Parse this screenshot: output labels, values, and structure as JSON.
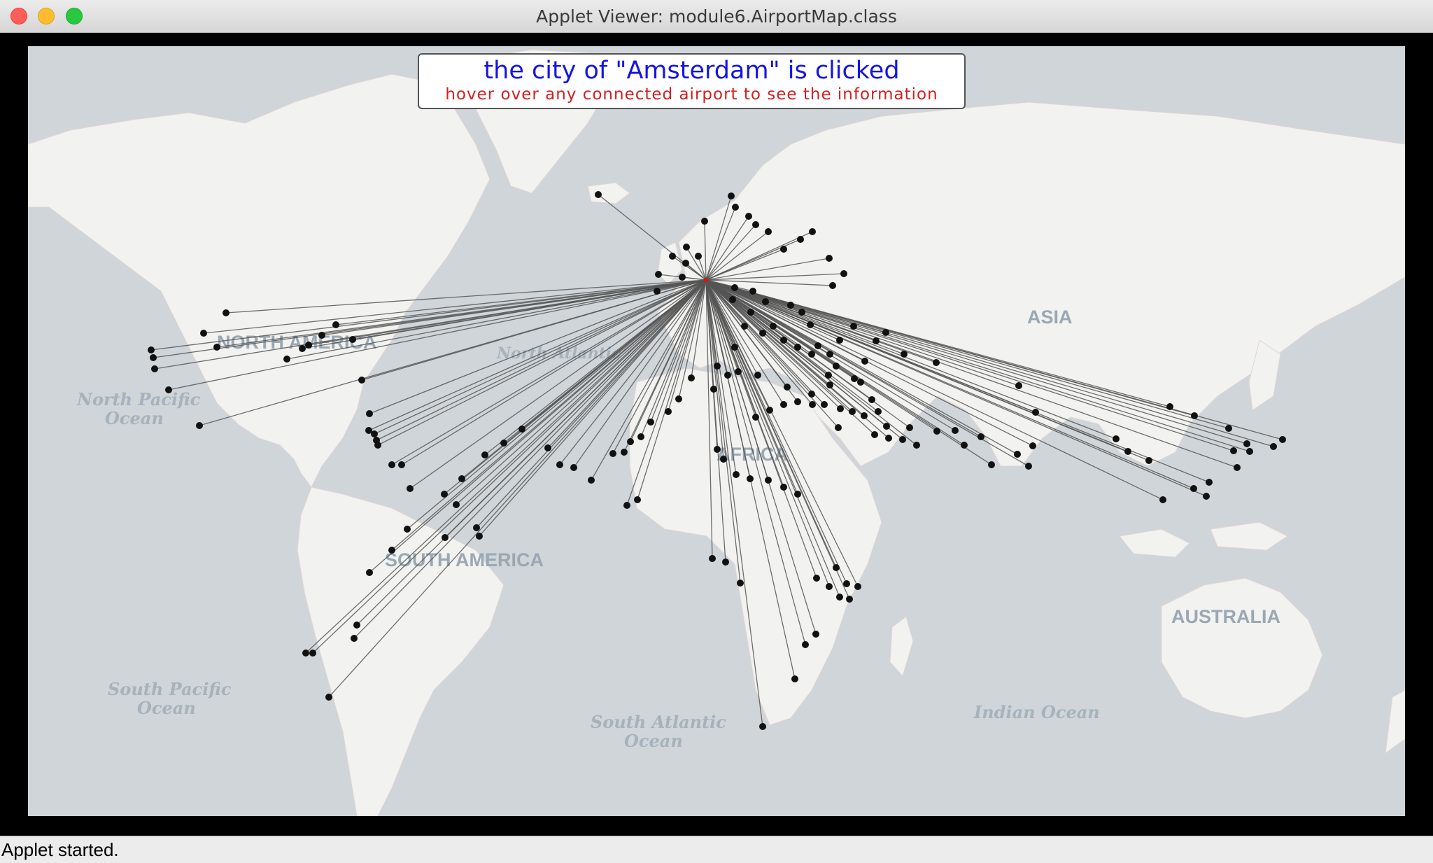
{
  "window": {
    "title": "Applet Viewer: module6.AirportMap.class"
  },
  "info_box": {
    "line1": "the city of \"Amsterdam\" is clicked",
    "line2": "hover over any connected airport to see the information"
  },
  "map": {
    "selected_city": "Amsterdam",
    "labels": {
      "north_america": "NORTH AMERICA",
      "south_america": "SOUTH AMERICA",
      "africa": "AFRICA",
      "asia": "ASIA",
      "australia": "AUSTRALIA",
      "north_atlantic": "North Atlantic",
      "north_pacific_1": "North Pacific",
      "north_pacific_2": "Ocean",
      "south_pacific_1": "South Pacific",
      "south_pacific_2": "Ocean",
      "south_atlantic_1": "South Atlantic",
      "south_atlantic_2": "Ocean",
      "indian_ocean": "Indian Ocean"
    },
    "colors": {
      "ocean": "#cfd5d9",
      "land": "#f2f2f0",
      "route_line": "#555555",
      "airport_marker": "#111111",
      "selected_marker": "#e01010"
    },
    "marker_icon": "airport-dot"
  },
  "status_bar": {
    "text": "Applet started."
  }
}
